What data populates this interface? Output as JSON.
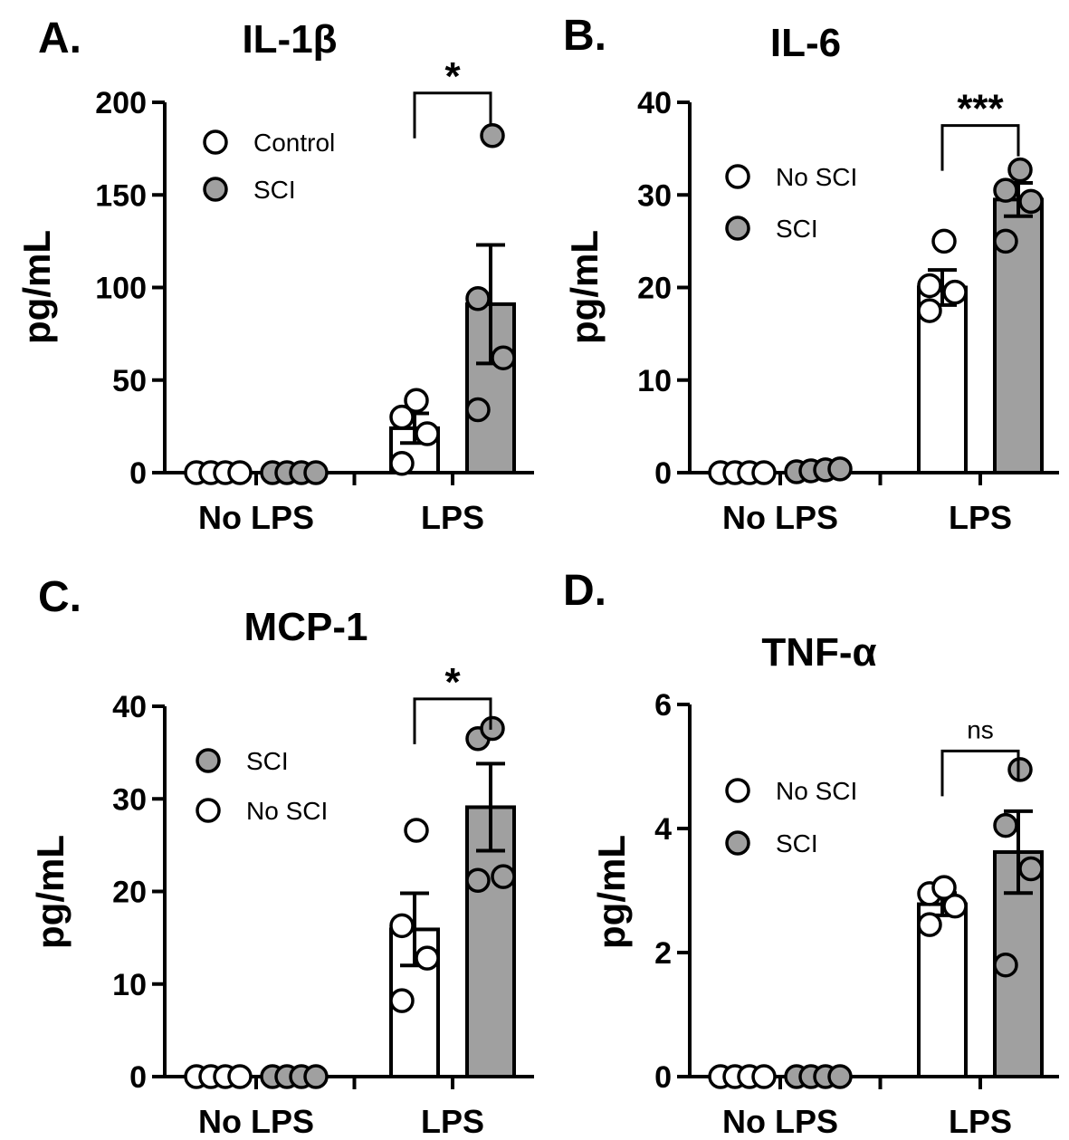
{
  "colors": {
    "control": "#ffffff",
    "sci": "#a0a0a0",
    "stroke": "#000000"
  },
  "chart_data": [
    {
      "type": "bar",
      "panel": "A.",
      "title": "IL-1β",
      "ylabel": "pg/mL",
      "ylim": [
        0,
        200
      ],
      "yticks": [
        0,
        50,
        100,
        150,
        200
      ],
      "categories": [
        "No LPS",
        "LPS"
      ],
      "legend": [
        {
          "label": "Control",
          "fill": "white"
        },
        {
          "label": "SCI",
          "fill": "gray"
        }
      ],
      "series": [
        {
          "fill": "white",
          "values": [
            0,
            24
          ],
          "sem": [
            0,
            8
          ],
          "points": [
            [
              0,
              0,
              0,
              0
            ],
            [
              5,
              21,
              30,
              39
            ]
          ]
        },
        {
          "fill": "gray",
          "values": [
            0,
            91
          ],
          "sem": [
            0,
            32
          ],
          "points": [
            [
              0,
              0,
              0,
              0
            ],
            [
              34,
              62,
              94,
              182
            ]
          ]
        }
      ],
      "significance": {
        "label": "*",
        "category": 1,
        "bracket_y": 205
      }
    },
    {
      "type": "bar",
      "panel": "B.",
      "title": "IL-6",
      "ylabel": "pg/mL",
      "ylim": [
        0,
        40
      ],
      "yticks": [
        0,
        10,
        20,
        30,
        40
      ],
      "categories": [
        "No LPS",
        "LPS"
      ],
      "legend": [
        {
          "label": "No SCI",
          "fill": "white"
        },
        {
          "label": "SCI",
          "fill": "gray"
        }
      ],
      "series": [
        {
          "fill": "white",
          "values": [
            0,
            20
          ],
          "sem": [
            0,
            1.9
          ],
          "points": [
            [
              0,
              0,
              0,
              0
            ],
            [
              17.5,
              19.5,
              20.2,
              25
            ]
          ]
        },
        {
          "fill": "gray",
          "values": [
            0,
            29.5
          ],
          "sem": [
            0,
            1.8
          ],
          "points": [
            [
              0.1,
              0.2,
              0.3,
              0.4
            ],
            [
              25,
              29.3,
              30.5,
              32.7
            ]
          ]
        }
      ],
      "significance": {
        "label": "***",
        "category": 1,
        "bracket_y": 37.5
      }
    },
    {
      "type": "bar",
      "panel": "C.",
      "title": "MCP-1",
      "ylabel": "pg/mL",
      "ylim": [
        0,
        40
      ],
      "yticks": [
        0,
        10,
        20,
        30,
        40
      ],
      "categories": [
        "No LPS",
        "LPS"
      ],
      "legend": [
        {
          "label": "SCI",
          "fill": "gray"
        },
        {
          "label": "No SCI",
          "fill": "white"
        }
      ],
      "series": [
        {
          "fill": "white",
          "values": [
            0,
            15.9
          ],
          "sem": [
            0,
            3.9
          ],
          "points": [
            [
              0,
              0,
              0,
              0
            ],
            [
              8.2,
              12.8,
              16.3,
              26.6
            ]
          ]
        },
        {
          "fill": "gray",
          "values": [
            0,
            29.1
          ],
          "sem": [
            0,
            4.7
          ],
          "points": [
            [
              0,
              0,
              0,
              0
            ],
            [
              21.2,
              21.6,
              36.5,
              37.6
            ]
          ]
        }
      ],
      "significance": {
        "label": "*",
        "category": 1,
        "bracket_y": 40.8
      }
    },
    {
      "type": "bar",
      "panel": "D.",
      "title": "TNF-α",
      "ylabel": "pg/mL",
      "ylim": [
        0,
        6
      ],
      "yticks": [
        0,
        2,
        4,
        6
      ],
      "categories": [
        "No LPS",
        "LPS"
      ],
      "legend": [
        {
          "label": "No SCI",
          "fill": "white"
        },
        {
          "label": "SCI",
          "fill": "gray"
        }
      ],
      "series": [
        {
          "fill": "white",
          "values": [
            0,
            2.78
          ],
          "sem": [
            0,
            0.18
          ],
          "points": [
            [
              0,
              0,
              0,
              0
            ],
            [
              2.45,
              2.75,
              2.95,
              3.05
            ]
          ]
        },
        {
          "fill": "gray",
          "values": [
            0,
            3.62
          ],
          "sem": [
            0,
            0.66
          ],
          "points": [
            [
              0,
              0,
              0,
              0
            ],
            [
              1.8,
              3.35,
              4.05,
              4.95
            ]
          ]
        }
      ],
      "significance": {
        "label": "ns",
        "category": 1,
        "bracket_y": 5.25
      }
    }
  ]
}
